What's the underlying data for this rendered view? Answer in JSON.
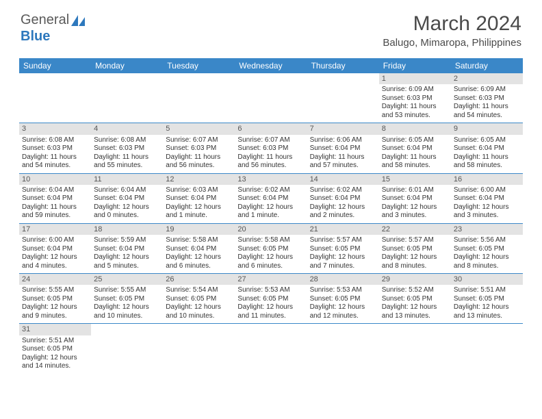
{
  "logo": {
    "text1": "General",
    "text2": "Blue"
  },
  "title": {
    "month": "March 2024",
    "location": "Balugo, Mimaropa, Philippines"
  },
  "colors": {
    "header_bg": "#3a87c8",
    "daynum_bg": "#e3e3e3",
    "border": "#3a87c8"
  },
  "weekdays": [
    "Sunday",
    "Monday",
    "Tuesday",
    "Wednesday",
    "Thursday",
    "Friday",
    "Saturday"
  ],
  "weeks": [
    [
      null,
      null,
      null,
      null,
      null,
      {
        "n": "1",
        "sunrise": "6:09 AM",
        "sunset": "6:03 PM",
        "dl": "11 hours and 53 minutes."
      },
      {
        "n": "2",
        "sunrise": "6:09 AM",
        "sunset": "6:03 PM",
        "dl": "11 hours and 54 minutes."
      }
    ],
    [
      {
        "n": "3",
        "sunrise": "6:08 AM",
        "sunset": "6:03 PM",
        "dl": "11 hours and 54 minutes."
      },
      {
        "n": "4",
        "sunrise": "6:08 AM",
        "sunset": "6:03 PM",
        "dl": "11 hours and 55 minutes."
      },
      {
        "n": "5",
        "sunrise": "6:07 AM",
        "sunset": "6:03 PM",
        "dl": "11 hours and 56 minutes."
      },
      {
        "n": "6",
        "sunrise": "6:07 AM",
        "sunset": "6:03 PM",
        "dl": "11 hours and 56 minutes."
      },
      {
        "n": "7",
        "sunrise": "6:06 AM",
        "sunset": "6:04 PM",
        "dl": "11 hours and 57 minutes."
      },
      {
        "n": "8",
        "sunrise": "6:05 AM",
        "sunset": "6:04 PM",
        "dl": "11 hours and 58 minutes."
      },
      {
        "n": "9",
        "sunrise": "6:05 AM",
        "sunset": "6:04 PM",
        "dl": "11 hours and 58 minutes."
      }
    ],
    [
      {
        "n": "10",
        "sunrise": "6:04 AM",
        "sunset": "6:04 PM",
        "dl": "11 hours and 59 minutes."
      },
      {
        "n": "11",
        "sunrise": "6:04 AM",
        "sunset": "6:04 PM",
        "dl": "12 hours and 0 minutes."
      },
      {
        "n": "12",
        "sunrise": "6:03 AM",
        "sunset": "6:04 PM",
        "dl": "12 hours and 1 minute."
      },
      {
        "n": "13",
        "sunrise": "6:02 AM",
        "sunset": "6:04 PM",
        "dl": "12 hours and 1 minute."
      },
      {
        "n": "14",
        "sunrise": "6:02 AM",
        "sunset": "6:04 PM",
        "dl": "12 hours and 2 minutes."
      },
      {
        "n": "15",
        "sunrise": "6:01 AM",
        "sunset": "6:04 PM",
        "dl": "12 hours and 3 minutes."
      },
      {
        "n": "16",
        "sunrise": "6:00 AM",
        "sunset": "6:04 PM",
        "dl": "12 hours and 3 minutes."
      }
    ],
    [
      {
        "n": "17",
        "sunrise": "6:00 AM",
        "sunset": "6:04 PM",
        "dl": "12 hours and 4 minutes."
      },
      {
        "n": "18",
        "sunrise": "5:59 AM",
        "sunset": "6:04 PM",
        "dl": "12 hours and 5 minutes."
      },
      {
        "n": "19",
        "sunrise": "5:58 AM",
        "sunset": "6:04 PM",
        "dl": "12 hours and 6 minutes."
      },
      {
        "n": "20",
        "sunrise": "5:58 AM",
        "sunset": "6:05 PM",
        "dl": "12 hours and 6 minutes."
      },
      {
        "n": "21",
        "sunrise": "5:57 AM",
        "sunset": "6:05 PM",
        "dl": "12 hours and 7 minutes."
      },
      {
        "n": "22",
        "sunrise": "5:57 AM",
        "sunset": "6:05 PM",
        "dl": "12 hours and 8 minutes."
      },
      {
        "n": "23",
        "sunrise": "5:56 AM",
        "sunset": "6:05 PM",
        "dl": "12 hours and 8 minutes."
      }
    ],
    [
      {
        "n": "24",
        "sunrise": "5:55 AM",
        "sunset": "6:05 PM",
        "dl": "12 hours and 9 minutes."
      },
      {
        "n": "25",
        "sunrise": "5:55 AM",
        "sunset": "6:05 PM",
        "dl": "12 hours and 10 minutes."
      },
      {
        "n": "26",
        "sunrise": "5:54 AM",
        "sunset": "6:05 PM",
        "dl": "12 hours and 10 minutes."
      },
      {
        "n": "27",
        "sunrise": "5:53 AM",
        "sunset": "6:05 PM",
        "dl": "12 hours and 11 minutes."
      },
      {
        "n": "28",
        "sunrise": "5:53 AM",
        "sunset": "6:05 PM",
        "dl": "12 hours and 12 minutes."
      },
      {
        "n": "29",
        "sunrise": "5:52 AM",
        "sunset": "6:05 PM",
        "dl": "12 hours and 13 minutes."
      },
      {
        "n": "30",
        "sunrise": "5:51 AM",
        "sunset": "6:05 PM",
        "dl": "12 hours and 13 minutes."
      }
    ],
    [
      {
        "n": "31",
        "sunrise": "5:51 AM",
        "sunset": "6:05 PM",
        "dl": "12 hours and 14 minutes."
      },
      null,
      null,
      null,
      null,
      null,
      null
    ]
  ],
  "labels": {
    "sunrise": "Sunrise:",
    "sunset": "Sunset:",
    "daylight": "Daylight:"
  }
}
